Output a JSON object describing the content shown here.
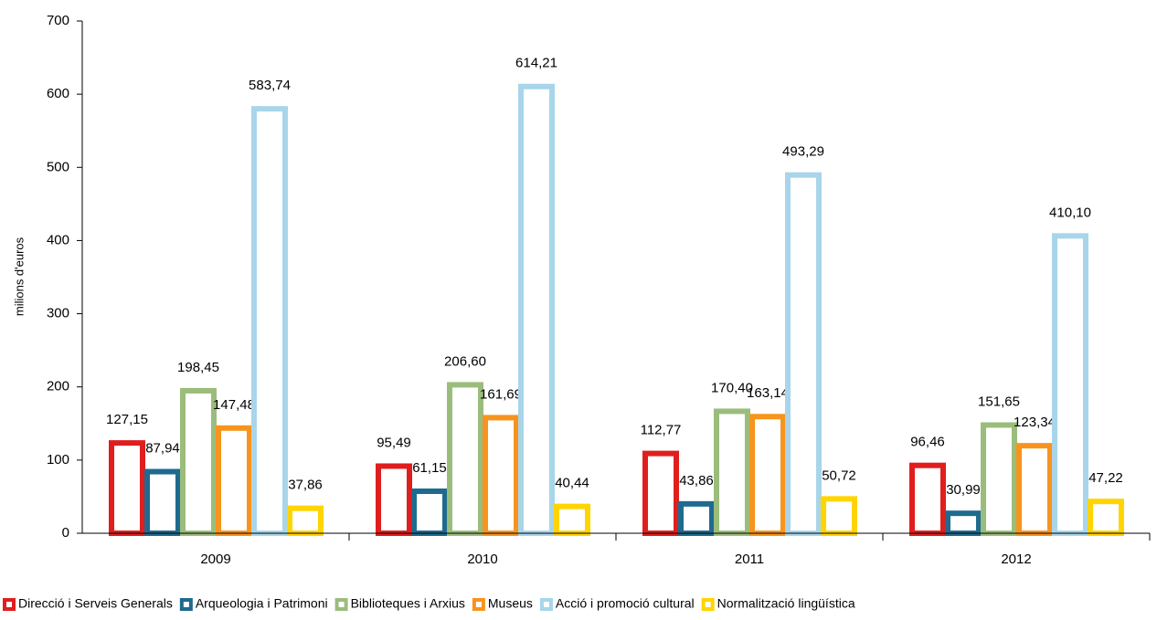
{
  "chart_data": {
    "type": "bar",
    "y_axis_label": "milions d'euros",
    "categories": [
      "2009",
      "2010",
      "2011",
      "2012"
    ],
    "series": [
      {
        "name": "Direcció i Serveis Generals",
        "color": "#e01e1e",
        "values": [
          127.15,
          95.49,
          112.77,
          96.46
        ],
        "value_labels": [
          "127,15",
          "95,49",
          "112,77",
          "96,46"
        ]
      },
      {
        "name": "Arqueologia i Patrimoni",
        "color": "#1f6a8f",
        "values": [
          87.94,
          61.15,
          43.86,
          30.99
        ],
        "value_labels": [
          "87,94",
          "61,15",
          "43,86",
          "30,99"
        ]
      },
      {
        "name": "Biblioteques i Arxius",
        "color": "#9bbd7c",
        "values": [
          198.45,
          206.6,
          170.4,
          151.65
        ],
        "value_labels": [
          "198,45",
          "206,60",
          "170,40",
          "151,65"
        ]
      },
      {
        "name": "Museus",
        "color": "#f7941d",
        "values": [
          147.48,
          161.69,
          163.14,
          123.34
        ],
        "value_labels": [
          "147,48",
          "161,69",
          "163,14",
          "123,34"
        ]
      },
      {
        "name": "Acció i promoció cultural",
        "color": "#a8d5ea",
        "values": [
          583.74,
          614.21,
          493.29,
          410.1
        ],
        "value_labels": [
          "583,74",
          "614,21",
          "493,29",
          "410,10"
        ]
      },
      {
        "name": "Normalització lingüística",
        "color": "#ffd400",
        "values": [
          37.86,
          40.44,
          50.72,
          47.22
        ],
        "value_labels": [
          "37,86",
          "40,44",
          "50,72",
          "47,22"
        ]
      }
    ],
    "ylim": [
      0,
      700
    ],
    "yticks": [
      0,
      100,
      200,
      300,
      400,
      500,
      600,
      700
    ],
    "grid": false,
    "legend": "bottom"
  }
}
